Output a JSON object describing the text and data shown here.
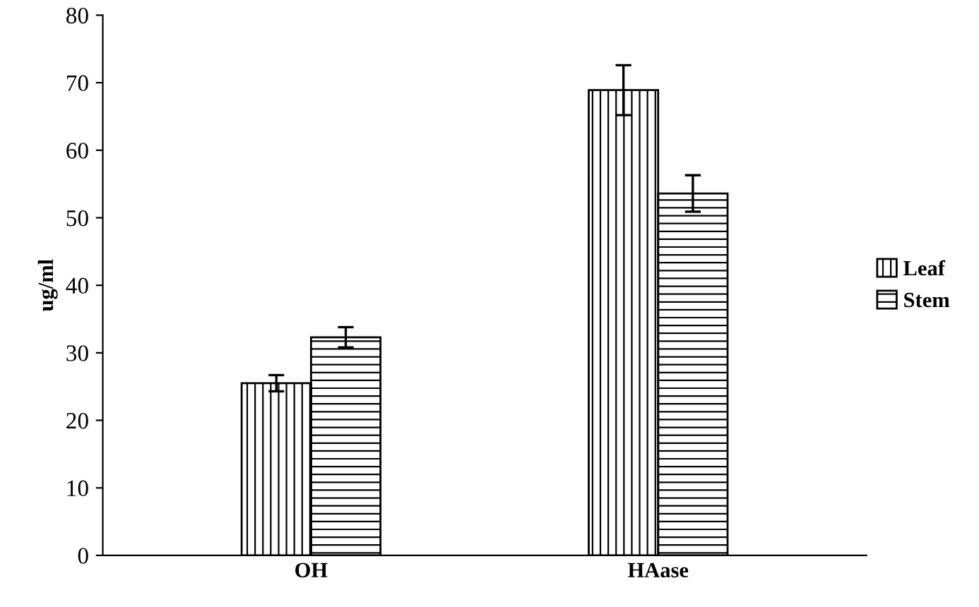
{
  "chart_data": {
    "type": "bar",
    "ylabel": "ug/ml",
    "categories": [
      "OH",
      "HAase"
    ],
    "series": [
      {
        "name": "Leaf",
        "color": "#000000",
        "values": [
          25.5,
          68.9
        ],
        "errors": [
          1.2,
          3.7
        ]
      },
      {
        "name": "Stem",
        "color": "#000000",
        "values": [
          32.3,
          53.6
        ],
        "errors": [
          1.5,
          2.7
        ]
      }
    ],
    "ylim": [
      0,
      80
    ],
    "yticks": [
      0,
      10,
      20,
      30,
      40,
      50,
      60,
      70,
      80
    ],
    "grid": false,
    "legend": "right"
  }
}
